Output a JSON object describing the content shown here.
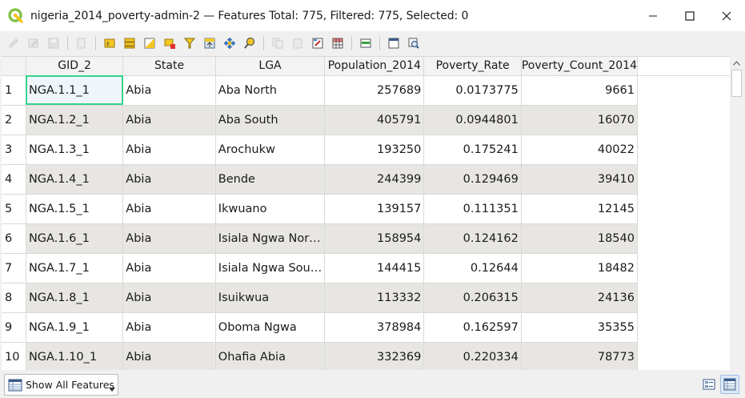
{
  "window": {
    "title": "nigeria_2014_poverty-admin-2 — Features Total: 775, Filtered: 775, Selected: 0"
  },
  "toolbar": {
    "buttons": [
      {
        "icon": "pencil-edit-icon",
        "enabled": false
      },
      {
        "icon": "multi-edit-icon",
        "enabled": false
      },
      {
        "icon": "save-edits-icon",
        "enabled": false
      },
      {
        "icon": "reload-icon",
        "enabled": false
      },
      {
        "icon": "add-feature-icon",
        "enabled": false
      },
      {
        "icon": "select-by-expression-icon",
        "enabled": true
      },
      {
        "icon": "select-all-icon",
        "enabled": true
      },
      {
        "icon": "invert-selection-icon",
        "enabled": true
      },
      {
        "icon": "deselect-all-icon",
        "enabled": true
      },
      {
        "icon": "filter-select-icon",
        "enabled": true
      },
      {
        "icon": "move-selection-top-icon",
        "enabled": true
      },
      {
        "icon": "pan-to-selection-icon",
        "enabled": true
      },
      {
        "icon": "zoom-to-selection-icon",
        "enabled": true
      },
      {
        "icon": "copy-rows-icon",
        "enabled": false
      },
      {
        "icon": "paste-features-icon",
        "enabled": false
      },
      {
        "icon": "new-field-icon",
        "enabled": false
      },
      {
        "icon": "delete-field-icon",
        "enabled": false
      },
      {
        "icon": "field-calculator-icon",
        "enabled": true
      },
      {
        "icon": "conditional-formatting-icon",
        "enabled": true
      },
      {
        "icon": "dock-table-icon",
        "enabled": true
      },
      {
        "icon": "actions-icon",
        "enabled": true
      }
    ]
  },
  "table": {
    "columns": [
      "GID_2",
      "State",
      "LGA",
      "Population_2014",
      "Poverty_Rate",
      "Poverty_Count_2014"
    ],
    "column_header_visible": [
      "GID_2",
      "State",
      "LGA",
      "Population_2014",
      "Poverty_Rate",
      "Poverty_Count_2014"
    ],
    "rows": [
      {
        "n": "1",
        "gid": "NGA.1.1_1",
        "state": "Abia",
        "lga": "Aba North",
        "pop": "257689",
        "rate": "0.0173775",
        "count": "9661"
      },
      {
        "n": "2",
        "gid": "NGA.1.2_1",
        "state": "Abia",
        "lga": "Aba South",
        "pop": "405791",
        "rate": "0.0944801",
        "count": "16070"
      },
      {
        "n": "3",
        "gid": "NGA.1.3_1",
        "state": "Abia",
        "lga": "Arochukw",
        "pop": "193250",
        "rate": "0.175241",
        "count": "40022"
      },
      {
        "n": "4",
        "gid": "NGA.1.4_1",
        "state": "Abia",
        "lga": "Bende",
        "pop": "244399",
        "rate": "0.129469",
        "count": "39410"
      },
      {
        "n": "5",
        "gid": "NGA.1.5_1",
        "state": "Abia",
        "lga": "Ikwuano",
        "pop": "139157",
        "rate": "0.111351",
        "count": "12145"
      },
      {
        "n": "6",
        "gid": "NGA.1.6_1",
        "state": "Abia",
        "lga": "Isiala Ngwa Nor…",
        "pop": "158954",
        "rate": "0.124162",
        "count": "18540"
      },
      {
        "n": "7",
        "gid": "NGA.1.7_1",
        "state": "Abia",
        "lga": "Isiala Ngwa Sou…",
        "pop": "144415",
        "rate": "0.12644",
        "count": "18482"
      },
      {
        "n": "8",
        "gid": "NGA.1.8_1",
        "state": "Abia",
        "lga": "Isuikwua",
        "pop": "113332",
        "rate": "0.206315",
        "count": "24136"
      },
      {
        "n": "9",
        "gid": "NGA.1.9_1",
        "state": "Abia",
        "lga": "Oboma Ngwa",
        "pop": "378984",
        "rate": "0.162597",
        "count": "35355"
      },
      {
        "n": "10",
        "gid": "NGA.1.10_1",
        "state": "Abia",
        "lga": "Ohafia Abia",
        "pop": "332369",
        "rate": "0.220334",
        "count": "78773"
      }
    ]
  },
  "bottom": {
    "show_features_label": "Show All Features"
  },
  "colors": {
    "selected_cell_border": "#33d48a",
    "alt_row": "#e8e6e3"
  }
}
